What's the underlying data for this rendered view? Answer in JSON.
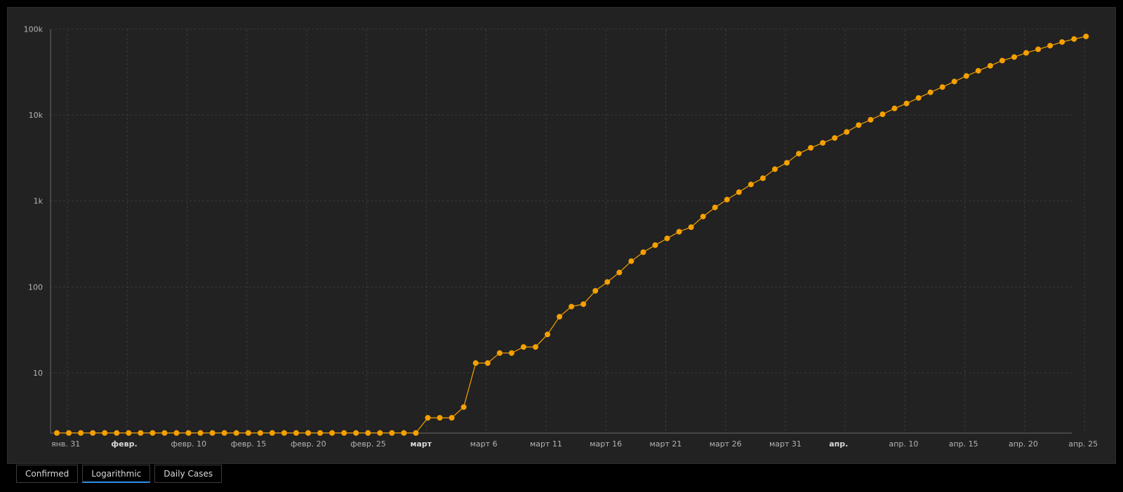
{
  "chart_data": {
    "type": "line",
    "scale": "log",
    "grid": true,
    "colors": {
      "line": "#f5a000",
      "point": "#f5a000",
      "grid": "#3a3a3a",
      "background": "#222222"
    },
    "xlabels": [
      {
        "day": 0,
        "text": "янв. 31",
        "bold": false
      },
      {
        "day": 5,
        "text": "февр.",
        "bold": true
      },
      {
        "day": 10,
        "text": "февр. 10",
        "bold": false
      },
      {
        "day": 15,
        "text": "февр. 15",
        "bold": false
      },
      {
        "day": 20,
        "text": "февр. 20",
        "bold": false
      },
      {
        "day": 25,
        "text": "февр. 25",
        "bold": false
      },
      {
        "day": 30,
        "text": "март",
        "bold": true
      },
      {
        "day": 35,
        "text": "март 6",
        "bold": false
      },
      {
        "day": 40,
        "text": "март 11",
        "bold": false
      },
      {
        "day": 45,
        "text": "март 16",
        "bold": false
      },
      {
        "day": 50,
        "text": "март 21",
        "bold": false
      },
      {
        "day": 55,
        "text": "март 26",
        "bold": false
      },
      {
        "day": 60,
        "text": "март 31",
        "bold": false
      },
      {
        "day": 65,
        "text": "апр.",
        "bold": true
      },
      {
        "day": 70,
        "text": "апр. 10",
        "bold": false
      },
      {
        "day": 75,
        "text": "апр. 15",
        "bold": false
      },
      {
        "day": 80,
        "text": "апр. 20",
        "bold": false
      },
      {
        "day": 85,
        "text": "апр. 25",
        "bold": false
      }
    ],
    "yticks": [
      {
        "value": 10,
        "text": "10"
      },
      {
        "value": 100,
        "text": "100"
      },
      {
        "value": 1000,
        "text": "1k"
      },
      {
        "value": 10000,
        "text": "10k"
      },
      {
        "value": 100000,
        "text": "100k"
      }
    ],
    "ylim": [
      2,
      100000
    ],
    "values": [
      2,
      2,
      2,
      2,
      2,
      2,
      2,
      2,
      2,
      2,
      2,
      2,
      2,
      2,
      2,
      2,
      2,
      2,
      2,
      2,
      2,
      2,
      2,
      2,
      2,
      2,
      2,
      2,
      2,
      2,
      2,
      3,
      3,
      3,
      4,
      13,
      13,
      17,
      17,
      20,
      20,
      28,
      45,
      59,
      63,
      90,
      114,
      147,
      199,
      253,
      306,
      367,
      438,
      495,
      658,
      840,
      1036,
      1264,
      1554,
      1836,
      2339,
      2777,
      3548,
      4149,
      4731,
      5389,
      6343,
      7615,
      8791,
      10180,
      11917,
      13584,
      15770,
      18328,
      21102,
      24490,
      28379,
      32640,
      37336,
      42853,
      47121,
      52763,
      57999,
      63929,
      70478,
      76389,
      81895
    ]
  },
  "tabs": [
    {
      "label": "Confirmed",
      "active": false
    },
    {
      "label": "Logarithmic",
      "active": true
    },
    {
      "label": "Daily Cases",
      "active": false
    }
  ]
}
